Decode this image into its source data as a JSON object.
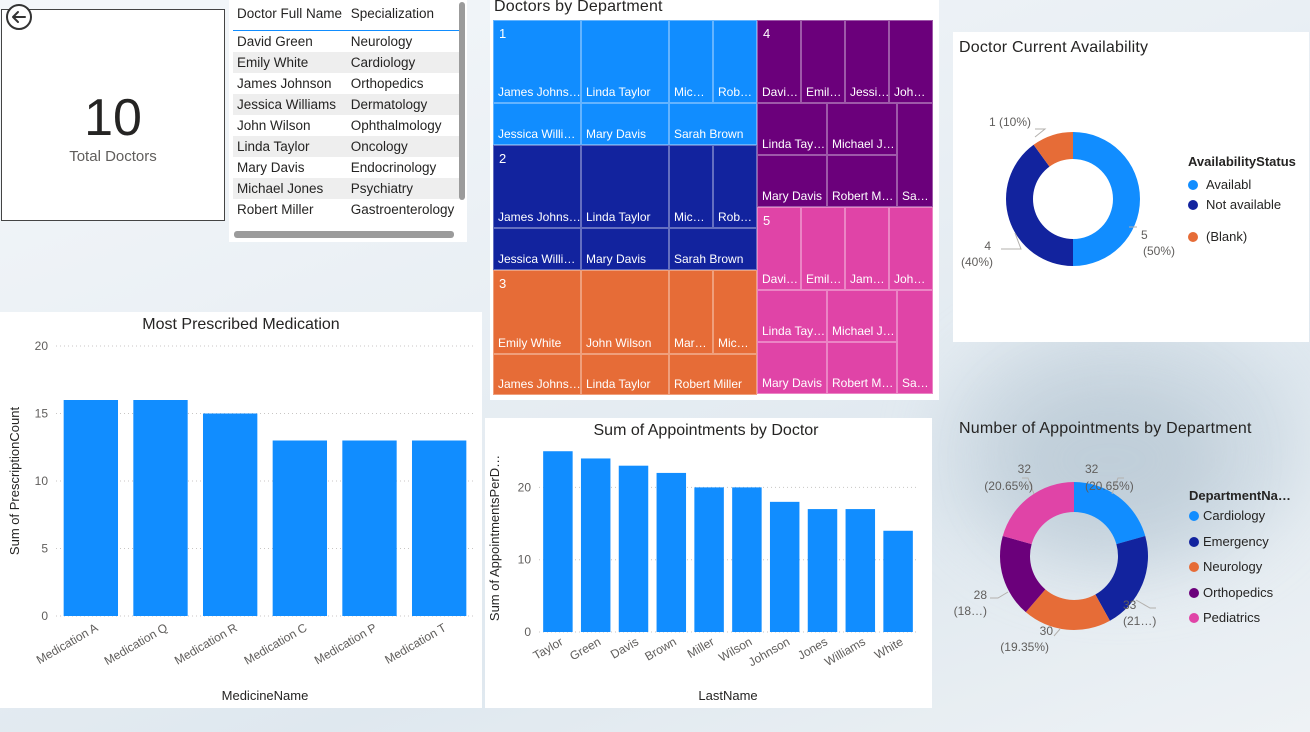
{
  "kpi": {
    "value": "10",
    "label": "Total Doctors"
  },
  "table": {
    "headers": [
      "Doctor Full Name",
      "Specialization"
    ],
    "rows": [
      [
        "David Green",
        "Neurology"
      ],
      [
        "Emily White",
        "Cardiology"
      ],
      [
        "James Johnson",
        "Orthopedics"
      ],
      [
        "Jessica Williams",
        "Dermatology"
      ],
      [
        "John Wilson",
        "Ophthalmology"
      ],
      [
        "Linda Taylor",
        "Oncology"
      ],
      [
        "Mary Davis",
        "Endocrinology"
      ],
      [
        "Michael Jones",
        "Psychiatry"
      ],
      [
        "Robert Miller",
        "Gastroenterology"
      ]
    ]
  },
  "treemap": {
    "title": "Doctors by Department",
    "departments": [
      {
        "label": "1",
        "color": "#118dff",
        "tiles": [
          "James Johns…",
          "Linda Taylor",
          "Mic…",
          "Rob…",
          "Jessica Willi…",
          "Mary Davis",
          "Sarah Brown"
        ]
      },
      {
        "label": "2",
        "color": "#12239e",
        "tiles": [
          "James Johns…",
          "Linda Taylor",
          "Mic…",
          "Rob…",
          "Jessica Willi…",
          "Mary Davis",
          "Sarah Brown"
        ]
      },
      {
        "label": "3",
        "color": "#e66c37",
        "tiles": [
          "Emily White",
          "John Wilson",
          "Mar…",
          "Mic…",
          "James Johns…",
          "Linda Taylor",
          "Robert Miller"
        ]
      },
      {
        "label": "4",
        "color": "#6b007b",
        "tiles": [
          "Davi…",
          "Emil…",
          "Jessi…",
          "Joh…",
          "Linda Tay…",
          "Michael J…",
          "Mary Davis",
          "Robert M…",
          "Sa…"
        ]
      },
      {
        "label": "5",
        "color": "#e044a7",
        "tiles": [
          "Davi…",
          "Emil…",
          "Jam…",
          "Joh…",
          "Linda Tay…",
          "Michael J…",
          "Mary Davis",
          "Robert M…",
          "Sa…"
        ]
      }
    ]
  },
  "availability": {
    "title": "Doctor Current Availability",
    "legend_title": "AvailabilityStatus",
    "chart_data": {
      "type": "pie",
      "labels": [
        "Availabl",
        "Not available",
        "(Blank)"
      ],
      "values": [
        5,
        4,
        1
      ],
      "data_labels": [
        "5",
        "4",
        "1 (10%)"
      ],
      "pct_labels": [
        "(50%)",
        "(40%)",
        ""
      ],
      "colors": [
        "#118dff",
        "#12239e",
        "#e66c37"
      ]
    }
  },
  "medication": {
    "title": "Most Prescribed Medication",
    "chart_data": {
      "type": "bar",
      "categories": [
        "Medication A",
        "Medication Q",
        "Medication R",
        "Medication C",
        "Medication P",
        "Medication T"
      ],
      "values": [
        16,
        16,
        15,
        13,
        13,
        13
      ],
      "xlabel": "MedicineName",
      "ylabel": "Sum of PrescriptionCount",
      "ylim": [
        0,
        20
      ],
      "yticks": [
        0,
        5,
        10,
        15,
        20
      ],
      "color": "#118dff"
    }
  },
  "appointments": {
    "title": "Sum of Appointments by Doctor",
    "chart_data": {
      "type": "bar",
      "categories": [
        "Taylor",
        "Green",
        "Davis",
        "Brown",
        "Miller",
        "Wilson",
        "Johnson",
        "Jones",
        "Williams",
        "White"
      ],
      "values": [
        25,
        24,
        23,
        22,
        20,
        20,
        18,
        17,
        17,
        14
      ],
      "xlabel": "LastName",
      "ylabel": "Sum of AppointmentsPerD…",
      "ylim": [
        0,
        26
      ],
      "yticks": [
        0,
        10,
        20
      ],
      "color": "#118dff"
    }
  },
  "dept_appointments": {
    "title": "Number of Appointments by Department",
    "legend_title": "DepartmentNa…",
    "chart_data": {
      "type": "pie",
      "labels": [
        "Cardiology",
        "Emergency",
        "Neurology",
        "Orthopedics",
        "Pediatrics"
      ],
      "values": [
        32,
        33,
        30,
        28,
        32
      ],
      "data_labels": [
        "32",
        "33",
        "30",
        "28",
        "32"
      ],
      "pct_labels": [
        "(20.65%)",
        "(21…)",
        "(19.35%)",
        "(18…)",
        "(20.65%)"
      ],
      "colors": [
        "#118dff",
        "#12239e",
        "#e66c37",
        "#6b007b",
        "#e044a7"
      ]
    }
  }
}
